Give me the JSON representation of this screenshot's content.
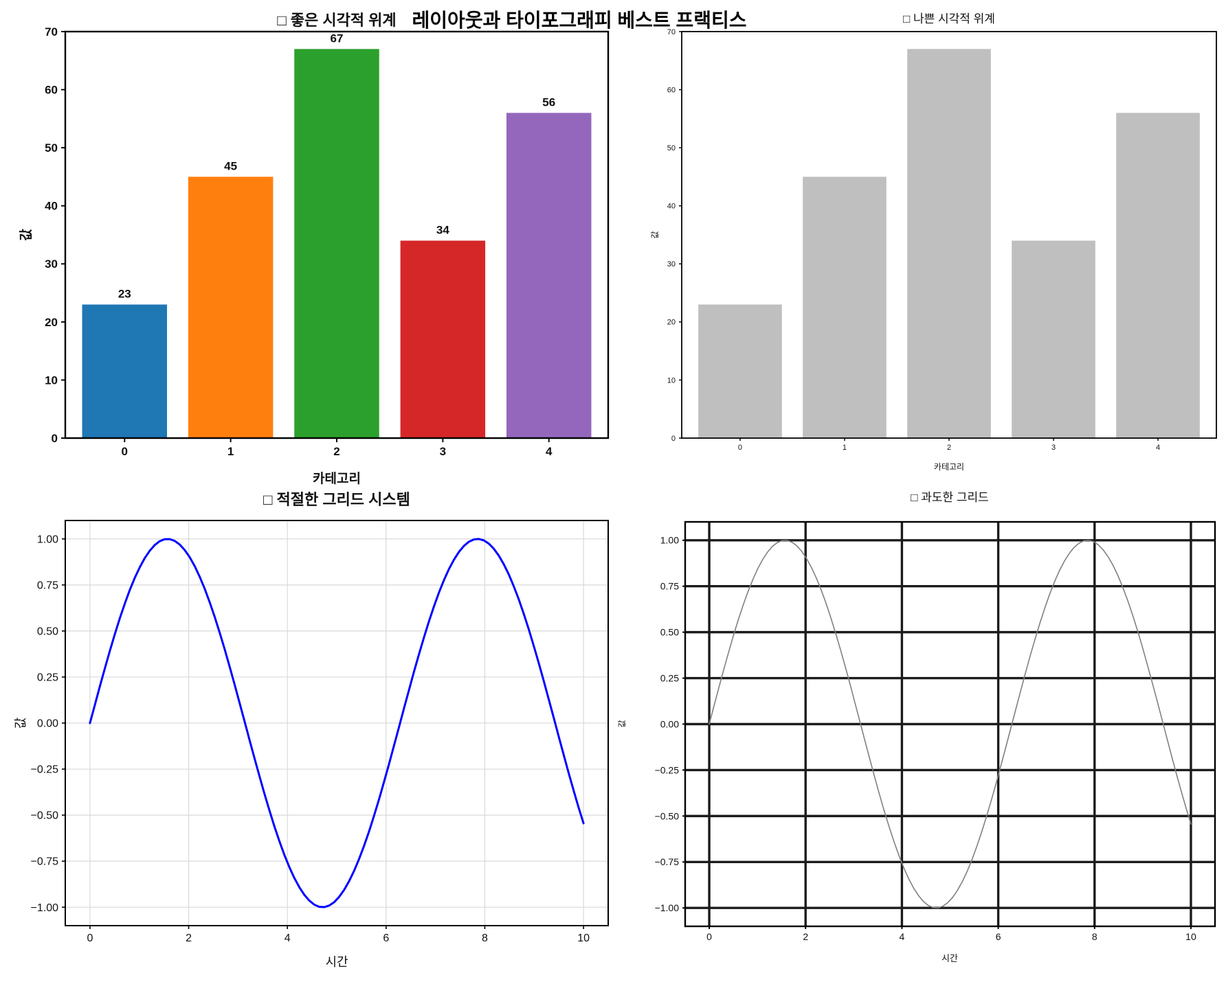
{
  "suptitle": {
    "text": "레이아웃과 타이포그래피 베스트 프랙티스"
  },
  "chart_data": "see charts",
  "charts": [
    {
      "id": "good-visual-hierarchy",
      "type": "bar",
      "verdict": "good",
      "title": "□ 좋은 시각적 위계",
      "title_color": "#008000",
      "xlabel": "카테고리",
      "ylabel": "값",
      "categories": [
        "0",
        "1",
        "2",
        "3",
        "4"
      ],
      "values": [
        23,
        45,
        67,
        34,
        56
      ],
      "value_labels": [
        "23",
        "45",
        "67",
        "34",
        "56"
      ],
      "show_value_labels": true,
      "bar_colors": [
        "#1f77b4",
        "#ff7f0e",
        "#2ca02c",
        "#d62728",
        "#9467bd"
      ],
      "xlim": [
        -0.559,
        4.559
      ],
      "ylim": [
        0,
        70
      ],
      "ytick_values": [
        0,
        10,
        20,
        30,
        40,
        50,
        60,
        70
      ],
      "ytick_labels": [
        "0",
        "10",
        "20",
        "30",
        "40",
        "50",
        "60",
        "70"
      ],
      "grid": "none"
    },
    {
      "id": "bad-visual-hierarchy",
      "type": "bar",
      "verdict": "bad",
      "title": "□ 나쁜 시각적 위계",
      "title_color": "#ff0000",
      "xlabel": "카테고리",
      "ylabel": "값",
      "categories": [
        "0",
        "1",
        "2",
        "3",
        "4"
      ],
      "values": [
        23,
        45,
        67,
        34,
        56
      ],
      "value_labels": [],
      "show_value_labels": false,
      "bar_colors": [
        "#bfbfbf",
        "#bfbfbf",
        "#bfbfbf",
        "#bfbfbf",
        "#bfbfbf"
      ],
      "xlim": [
        -0.559,
        4.559
      ],
      "ylim": [
        0,
        70
      ],
      "ytick_values": [
        0,
        10,
        20,
        30,
        40,
        50,
        60,
        70
      ],
      "ytick_labels": [
        "0",
        "10",
        "20",
        "30",
        "40",
        "50",
        "60",
        "70"
      ],
      "grid": "none"
    },
    {
      "id": "proper-grid-system",
      "type": "line",
      "verdict": "good",
      "title": "□ 적절한 그리드 시스템",
      "title_color": "#008000",
      "xlabel": "시간",
      "ylabel": "값",
      "function": "y = sin(x)",
      "x_range": [
        0,
        10
      ],
      "n_points": 100,
      "line_color": "#0000ff",
      "line_width": 3,
      "grid": "subtle",
      "xlim": [
        -0.5,
        10.5
      ],
      "ylim": [
        -1.1,
        1.1
      ],
      "xtick_values": [
        0,
        2,
        4,
        6,
        8,
        10
      ],
      "xtick_labels": [
        "0",
        "2",
        "4",
        "6",
        "8",
        "10"
      ],
      "ytick_values": [
        1,
        0.75,
        0.5,
        0.25,
        0,
        -0.25,
        -0.5,
        -0.75,
        -1
      ],
      "ytick_labels": [
        "1.00",
        "0.75",
        "0.50",
        "0.25",
        "0.00",
        "−0.25",
        "−0.50",
        "−0.75",
        "−1.00"
      ]
    },
    {
      "id": "excessive-grid",
      "type": "line",
      "verdict": "bad",
      "title": "□ 과도한 그리드",
      "title_color": "#ff0000",
      "xlabel": "시간",
      "ylabel": "값",
      "function": "y = sin(x)",
      "x_range": [
        0,
        10
      ],
      "n_points": 100,
      "line_color": "#808080",
      "line_width": 1.6,
      "grid": "heavy",
      "xlim": [
        -0.5,
        10.5
      ],
      "ylim": [
        -1.1,
        1.1
      ],
      "xtick_values": [
        0,
        2,
        4,
        6,
        8,
        10
      ],
      "xtick_labels": [
        "0",
        "2",
        "4",
        "6",
        "8",
        "10"
      ],
      "ytick_values": [
        1,
        0.75,
        0.5,
        0.25,
        0,
        -0.25,
        -0.5,
        -0.75,
        -1
      ],
      "ytick_labels": [
        "1.00",
        "0.75",
        "0.50",
        "0.25",
        "0.00",
        "−0.25",
        "−0.50",
        "−0.75",
        "−1.00"
      ]
    }
  ]
}
